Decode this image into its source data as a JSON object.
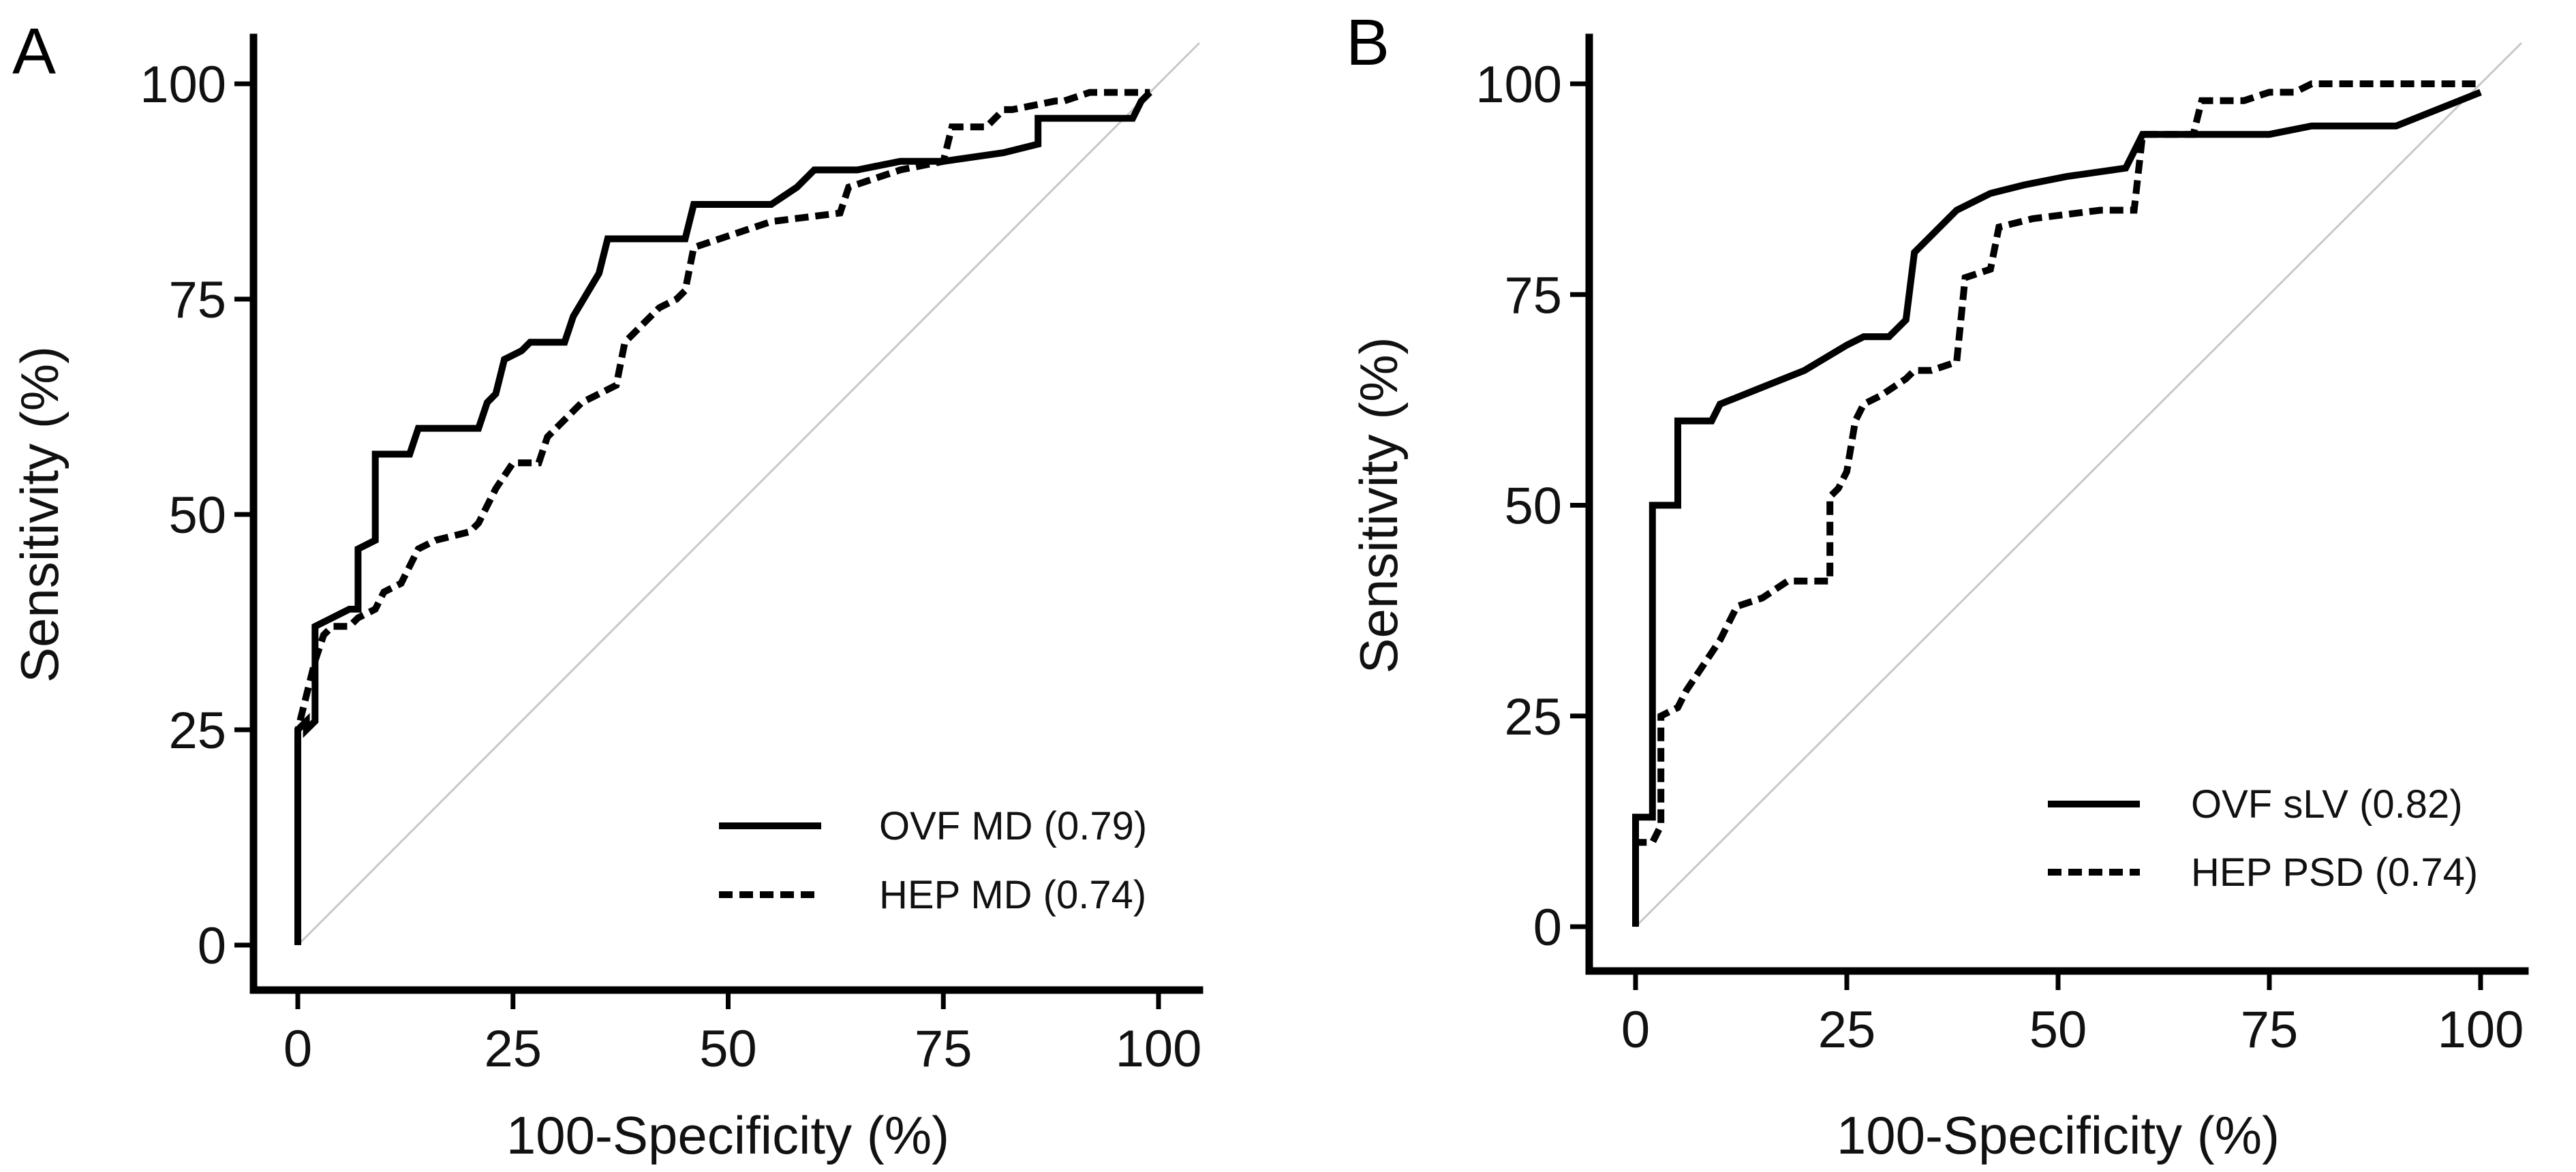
{
  "chart_data": [
    {
      "type": "line",
      "panel_label": "A",
      "xlabel": "100-Specificity (%)",
      "ylabel": "Sensitivity (%)",
      "xlim": [
        0,
        100
      ],
      "ylim": [
        0,
        100
      ],
      "xticks": [
        0,
        25,
        50,
        75,
        100
      ],
      "yticks": [
        0,
        25,
        50,
        75,
        100
      ],
      "reference_line": true,
      "grid": false,
      "legend_placement": "bottom-right",
      "series": [
        {
          "name": "OVF MD (0.79)",
          "style": "solid",
          "x": [
            0,
            0,
            1,
            1,
            2,
            2,
            6,
            7,
            7,
            9,
            9,
            13,
            14,
            21,
            22,
            23,
            24,
            26,
            27,
            31,
            32,
            35,
            36,
            45,
            46,
            55,
            58,
            60,
            65,
            70,
            75,
            82,
            86,
            86,
            97,
            98,
            99
          ],
          "y": [
            0,
            25,
            26,
            25,
            26,
            37,
            39,
            39,
            46,
            47,
            57,
            57,
            60,
            60,
            63,
            64,
            68,
            69,
            70,
            70,
            73,
            78,
            82,
            82,
            86,
            86,
            88,
            90,
            90,
            91,
            91,
            92,
            93,
            96,
            96,
            98,
            99
          ]
        },
        {
          "name": "HEP MD (0.74)",
          "style": "dashed",
          "x": [
            0,
            0,
            2,
            3,
            4,
            6,
            7,
            9,
            10,
            12,
            13,
            14,
            16,
            20,
            21,
            23,
            25,
            28,
            29,
            31,
            33,
            37,
            38,
            42,
            44,
            45,
            46,
            55,
            63,
            64,
            70,
            75,
            76,
            80,
            82,
            83,
            88,
            89,
            92,
            97,
            99
          ],
          "y": [
            0,
            25,
            33,
            36,
            37,
            37,
            38,
            39,
            41,
            42,
            44,
            46,
            47,
            48,
            49,
            53,
            56,
            56,
            59,
            61,
            63,
            65,
            70,
            74,
            75,
            76,
            81,
            84,
            85,
            88,
            90,
            91,
            95,
            95,
            97,
            97,
            98,
            98,
            99,
            99,
            99
          ]
        }
      ]
    },
    {
      "type": "line",
      "panel_label": "B",
      "xlabel": "100-Specificity (%)",
      "ylabel": "Sensitivity (%)",
      "xlim": [
        0,
        100
      ],
      "ylim": [
        0,
        100
      ],
      "xticks": [
        0,
        25,
        50,
        75,
        100
      ],
      "yticks": [
        0,
        25,
        50,
        75,
        100
      ],
      "reference_line": true,
      "grid": false,
      "legend_placement": "bottom-right",
      "series": [
        {
          "name": "OVF sLV (0.82)",
          "style": "solid",
          "x": [
            0,
            0,
            2,
            2,
            3,
            3,
            5,
            5,
            9,
            10,
            15,
            20,
            25,
            27,
            30,
            32,
            33,
            35,
            38,
            42,
            46,
            51,
            58,
            60,
            65,
            75,
            80,
            90,
            95,
            100
          ],
          "y": [
            0,
            13,
            13,
            50,
            50,
            50,
            50,
            60,
            60,
            62,
            64,
            66,
            69,
            70,
            70,
            72,
            80,
            82,
            85,
            87,
            88,
            89,
            90,
            94,
            94,
            94,
            95,
            95,
            97,
            99
          ]
        },
        {
          "name": "HEP PSD (0.74)",
          "style": "dashed",
          "x": [
            0,
            0,
            2,
            3,
            3,
            5,
            6,
            8,
            10,
            12,
            15,
            18,
            21,
            23,
            23,
            24,
            25,
            26,
            27,
            29,
            32,
            33,
            35,
            38,
            39,
            42,
            43,
            47,
            55,
            59,
            60,
            66,
            67,
            70,
            72,
            75,
            78,
            80,
            100
          ],
          "y": [
            0,
            10,
            10,
            12,
            25,
            26,
            28,
            31,
            34,
            38,
            39,
            41,
            41,
            41,
            51,
            52,
            54,
            60,
            62,
            63,
            65,
            66,
            66,
            67,
            77,
            78,
            83,
            84,
            85,
            85,
            94,
            94,
            98,
            98,
            98,
            99,
            99,
            100,
            100
          ]
        }
      ]
    }
  ]
}
